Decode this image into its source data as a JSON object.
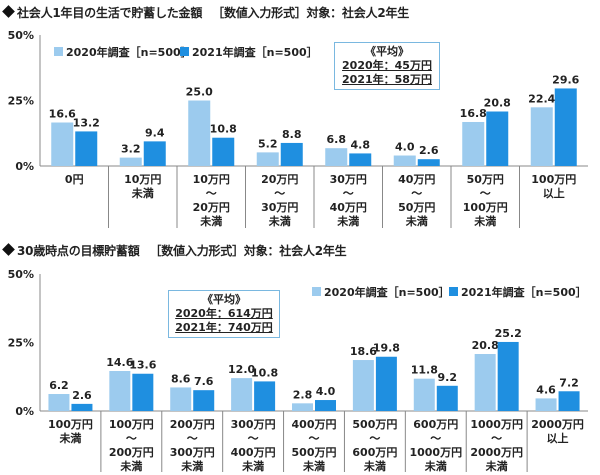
{
  "colors": {
    "series2020": "#9ccbee",
    "series2021": "#1f8fe0",
    "axis": "#888888",
    "avg_border": "#7ab8e0"
  },
  "chart_data": [
    {
      "type": "bar",
      "title": "社会人1年目の生活で貯蓄した金額",
      "input_format": "［数値入力形式］",
      "target": "対象：社会人2年生",
      "yticks": [
        "50%",
        "25%",
        "0%"
      ],
      "ylim": [
        0,
        50
      ],
      "unit": "%",
      "legend_position": "top-left",
      "categories": [
        "0円",
        "10万円\n未満",
        "10万円\n～\n20万円\n未満",
        "20万円\n～\n30万円\n未満",
        "30万円\n～\n40万円\n未満",
        "40万円\n～\n50万円\n未満",
        "50万円\n～\n100万円\n未満",
        "100万円\n以上"
      ],
      "series": [
        {
          "name": "2020年調査［n=500］",
          "values": [
            16.6,
            3.2,
            25.0,
            5.2,
            6.8,
            4.0,
            16.8,
            22.4
          ]
        },
        {
          "name": "2021年調査［n=500］",
          "values": [
            13.2,
            9.4,
            10.8,
            8.8,
            4.8,
            2.6,
            20.8,
            29.6
          ]
        }
      ],
      "average": {
        "heading": "《平均》",
        "lines": [
          "2020年：45万円",
          "2021年：58万円"
        ]
      }
    },
    {
      "type": "bar",
      "title": "30歳時点の目標貯蓄額",
      "input_format": "［数値入力形式］",
      "target": "対象：社会人2年生",
      "yticks": [
        "50%",
        "25%",
        "0%"
      ],
      "ylim": [
        0,
        50
      ],
      "unit": "%",
      "legend_position": "top-right",
      "categories": [
        "100万円\n未満",
        "100万円\n～\n200万円\n未満",
        "200万円\n～\n300万円\n未満",
        "300万円\n～\n400万円\n未満",
        "400万円\n～\n500万円\n未満",
        "500万円\n～\n600万円\n未満",
        "600万円\n～\n1000万円\n未満",
        "1000万円\n～\n2000万円\n未満",
        "2000万円\n以上"
      ],
      "series": [
        {
          "name": "2020年調査［n=500］",
          "values": [
            6.2,
            14.6,
            8.6,
            12.0,
            2.8,
            18.6,
            11.8,
            20.8,
            4.6
          ]
        },
        {
          "name": "2021年調査［n=500］",
          "values": [
            2.6,
            13.6,
            7.6,
            10.8,
            4.0,
            19.8,
            9.2,
            25.2,
            7.2
          ]
        }
      ],
      "average": {
        "heading": "《平均》",
        "lines": [
          "2020年：614万円",
          "2021年：740万円"
        ]
      }
    }
  ]
}
